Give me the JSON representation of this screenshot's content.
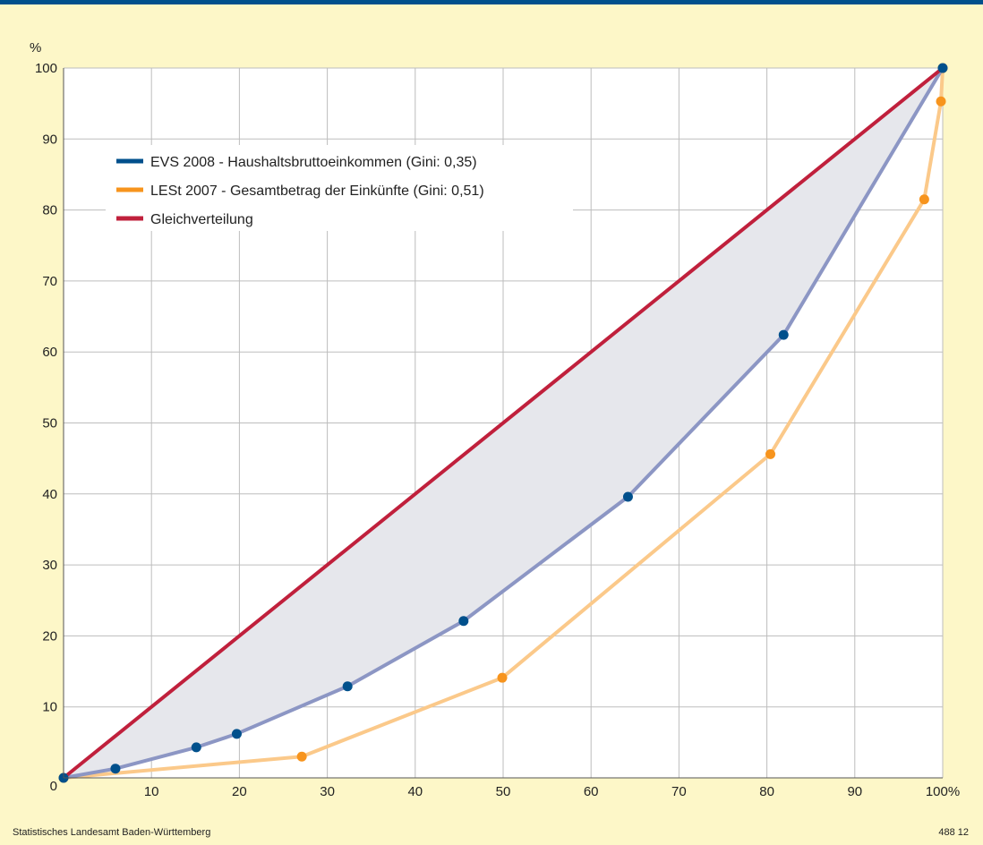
{
  "chart_data": {
    "type": "line",
    "title": "",
    "xlabel": "",
    "ylabel": "",
    "y_unit": "%",
    "x_unit": "%",
    "xlim": [
      0,
      100
    ],
    "ylim": [
      0,
      100
    ],
    "x_ticks": [
      "10",
      "20",
      "30",
      "40",
      "50",
      "60",
      "70",
      "80",
      "90",
      "100%"
    ],
    "y_ticks": [
      "0",
      "10",
      "20",
      "30",
      "40",
      "50",
      "60",
      "70",
      "80",
      "90",
      "100"
    ],
    "grid": true,
    "legend_position": "top-left",
    "series": [
      {
        "name": "EVS 2008 - Haushaltsbruttoeinkommen (Gini: 0,35)",
        "color": "#00508c",
        "line_color": "#8c96c4",
        "x": [
          0,
          5.9,
          15.1,
          19.7,
          32.3,
          45.5,
          64.2,
          81.9,
          100
        ],
        "y": [
          0,
          1.3,
          4.3,
          6.2,
          12.9,
          22.1,
          39.6,
          62.4,
          100
        ]
      },
      {
        "name": "LESt 2007 - Gesamtbetrag der Einkünfte (Gini: 0,51)",
        "color": "#f7941d",
        "line_color": "#fbc98a",
        "x": [
          0,
          27.1,
          49.9,
          80.4,
          97.9,
          99.8,
          100
        ],
        "y": [
          0,
          3.0,
          14.1,
          45.6,
          81.5,
          95.3,
          100
        ]
      },
      {
        "name": "Gleichverteilung",
        "color": "#c0203c",
        "line_color": "#c0203c",
        "x": [
          0,
          100
        ],
        "y": [
          0,
          100
        ]
      }
    ]
  },
  "footer": {
    "source": "Statistisches Landesamt Baden-Württemberg",
    "code": "488 12"
  }
}
